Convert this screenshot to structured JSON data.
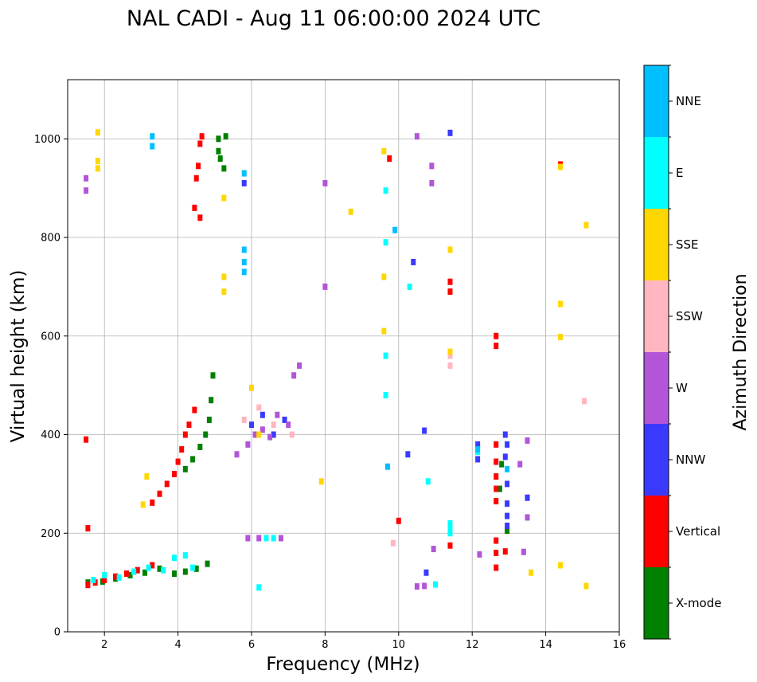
{
  "chart_data": {
    "type": "scatter",
    "title": "NAL CADI - Aug 11 06:00:00 2024 UTC",
    "xlabel": "Frequency (MHz)",
    "ylabel": "Virtual height (km)",
    "xlim": [
      1.0,
      16.0
    ],
    "ylim": [
      0,
      1120
    ],
    "xticks": [
      "2",
      "4",
      "6",
      "8",
      "10",
      "12",
      "14",
      "16"
    ],
    "yticks": [
      "0",
      "200",
      "400",
      "600",
      "800",
      "1000"
    ],
    "grid": true,
    "colorbar": {
      "label": "Azimuth Direction",
      "categories": [
        "X-mode",
        "Vertical",
        "NNW",
        "W",
        "SSW",
        "SSE",
        "E",
        "NNE"
      ],
      "colors": [
        "#008000",
        "#ff0000",
        "#3a3aff",
        "#b355d8",
        "#ffb6c1",
        "#ffd700",
        "#00ffff",
        "#00bfff"
      ]
    },
    "series": [
      {
        "name": "X-mode",
        "points": [
          [
            1.55,
            100
          ],
          [
            1.95,
            102
          ],
          [
            2.3,
            108
          ],
          [
            2.7,
            115
          ],
          [
            3.1,
            120
          ],
          [
            3.5,
            128
          ],
          [
            3.9,
            118
          ],
          [
            4.2,
            122
          ],
          [
            4.5,
            128
          ],
          [
            4.8,
            138
          ],
          [
            4.2,
            330
          ],
          [
            4.4,
            350
          ],
          [
            4.6,
            375
          ],
          [
            4.75,
            400
          ],
          [
            4.85,
            430
          ],
          [
            4.9,
            470
          ],
          [
            4.95,
            520
          ],
          [
            5.1,
            1000
          ],
          [
            5.15,
            960
          ],
          [
            5.25,
            940
          ],
          [
            5.1,
            975
          ],
          [
            5.3,
            1005
          ],
          [
            12.75,
            290
          ],
          [
            12.95,
            205
          ],
          [
            12.8,
            340
          ]
        ]
      },
      {
        "name": "Vertical",
        "points": [
          [
            1.55,
            95
          ],
          [
            1.55,
            210
          ],
          [
            1.5,
            390
          ],
          [
            1.75,
            100
          ],
          [
            2.0,
            105
          ],
          [
            2.3,
            112
          ],
          [
            2.6,
            118
          ],
          [
            2.9,
            125
          ],
          [
            3.3,
            135
          ],
          [
            3.3,
            262
          ],
          [
            3.5,
            280
          ],
          [
            3.7,
            300
          ],
          [
            3.9,
            320
          ],
          [
            4.0,
            345
          ],
          [
            4.1,
            370
          ],
          [
            4.2,
            400
          ],
          [
            4.3,
            420
          ],
          [
            4.45,
            450
          ],
          [
            4.45,
            860
          ],
          [
            4.5,
            920
          ],
          [
            4.6,
            990
          ],
          [
            4.55,
            945
          ],
          [
            4.65,
            1005
          ],
          [
            4.6,
            840
          ],
          [
            12.65,
            600
          ],
          [
            12.65,
            580
          ],
          [
            12.65,
            380
          ],
          [
            12.65,
            345
          ],
          [
            12.65,
            315
          ],
          [
            12.65,
            290
          ],
          [
            12.65,
            265
          ],
          [
            12.65,
            185
          ],
          [
            12.65,
            160
          ],
          [
            12.65,
            130
          ],
          [
            12.9,
            163
          ],
          [
            11.4,
            710
          ],
          [
            11.4,
            690
          ],
          [
            11.4,
            175
          ],
          [
            14.4,
            948
          ],
          [
            10.0,
            225
          ],
          [
            9.75,
            960
          ]
        ]
      },
      {
        "name": "NNW",
        "points": [
          [
            12.9,
            400
          ],
          [
            12.95,
            380
          ],
          [
            12.9,
            355
          ],
          [
            12.95,
            300
          ],
          [
            12.95,
            260
          ],
          [
            12.95,
            235
          ],
          [
            12.95,
            215
          ],
          [
            13.5,
            272
          ],
          [
            12.15,
            380
          ],
          [
            12.15,
            350
          ],
          [
            10.7,
            408
          ],
          [
            10.25,
            360
          ],
          [
            10.75,
            120
          ],
          [
            10.4,
            750
          ],
          [
            11.4,
            1012
          ],
          [
            5.8,
            910
          ],
          [
            6.0,
            420
          ],
          [
            6.3,
            440
          ],
          [
            6.6,
            400
          ],
          [
            6.9,
            430
          ]
        ]
      },
      {
        "name": "W",
        "points": [
          [
            5.6,
            360
          ],
          [
            5.9,
            380
          ],
          [
            6.1,
            400
          ],
          [
            6.3,
            410
          ],
          [
            6.5,
            395
          ],
          [
            6.7,
            440
          ],
          [
            7.0,
            420
          ],
          [
            7.3,
            540
          ],
          [
            7.15,
            520
          ],
          [
            5.9,
            190
          ],
          [
            6.2,
            190
          ],
          [
            6.8,
            190
          ],
          [
            13.4,
            162
          ],
          [
            13.5,
            232
          ],
          [
            13.5,
            388
          ],
          [
            13.3,
            340
          ],
          [
            12.2,
            157
          ],
          [
            10.95,
            168
          ],
          [
            10.7,
            93
          ],
          [
            10.5,
            92
          ],
          [
            10.9,
            945
          ],
          [
            10.5,
            1005
          ],
          [
            10.9,
            910
          ],
          [
            8.0,
            910
          ],
          [
            8.0,
            700
          ],
          [
            1.5,
            920
          ],
          [
            1.5,
            895
          ]
        ]
      },
      {
        "name": "SSW",
        "points": [
          [
            5.8,
            430
          ],
          [
            6.2,
            455
          ],
          [
            6.6,
            420
          ],
          [
            7.1,
            400
          ],
          [
            11.4,
            560
          ],
          [
            11.4,
            540
          ],
          [
            15.05,
            468
          ],
          [
            9.85,
            180
          ]
        ]
      },
      {
        "name": "SSE",
        "points": [
          [
            1.82,
            1013
          ],
          [
            1.82,
            955
          ],
          [
            1.82,
            940
          ],
          [
            3.15,
            315
          ],
          [
            3.05,
            258
          ],
          [
            5.25,
            720
          ],
          [
            5.25,
            690
          ],
          [
            5.25,
            880
          ],
          [
            6.0,
            495
          ],
          [
            6.2,
            400
          ],
          [
            9.6,
            975
          ],
          [
            9.6,
            720
          ],
          [
            9.6,
            610
          ],
          [
            11.4,
            775
          ],
          [
            11.4,
            568
          ],
          [
            14.4,
            665
          ],
          [
            14.4,
            598
          ],
          [
            14.4,
            943
          ],
          [
            15.1,
            825
          ],
          [
            14.4,
            135
          ],
          [
            13.6,
            120
          ],
          [
            15.1,
            93
          ],
          [
            8.7,
            852
          ],
          [
            7.9,
            305
          ]
        ]
      },
      {
        "name": "E",
        "points": [
          [
            1.7,
            105
          ],
          [
            2.0,
            115
          ],
          [
            2.4,
            110
          ],
          [
            2.8,
            122
          ],
          [
            3.2,
            130
          ],
          [
            3.6,
            125
          ],
          [
            3.9,
            150
          ],
          [
            4.2,
            155
          ],
          [
            4.4,
            130
          ],
          [
            6.2,
            90
          ],
          [
            6.6,
            190
          ],
          [
            6.4,
            190
          ],
          [
            9.65,
            895
          ],
          [
            9.65,
            790
          ],
          [
            9.65,
            560
          ],
          [
            9.65,
            480
          ],
          [
            10.3,
            700
          ],
          [
            10.8,
            305
          ],
          [
            11.0,
            96
          ],
          [
            11.4,
            210
          ],
          [
            11.4,
            200
          ],
          [
            11.4,
            220
          ],
          [
            12.15,
            365
          ]
        ]
      },
      {
        "name": "NNE",
        "points": [
          [
            3.3,
            1005
          ],
          [
            3.3,
            985
          ],
          [
            5.8,
            930
          ],
          [
            5.8,
            775
          ],
          [
            5.8,
            750
          ],
          [
            5.8,
            730
          ],
          [
            12.95,
            330
          ],
          [
            9.7,
            335
          ],
          [
            9.9,
            815
          ],
          [
            12.15,
            370
          ]
        ]
      }
    ]
  }
}
